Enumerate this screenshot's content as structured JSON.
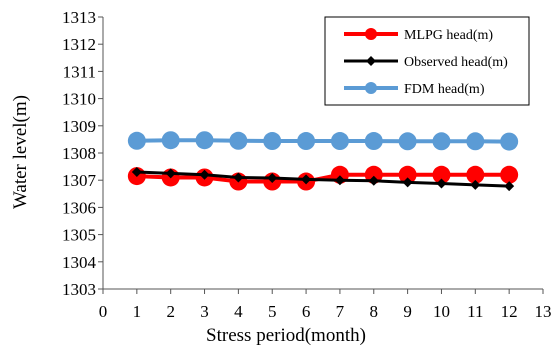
{
  "chart_data": {
    "type": "line",
    "xlabel": "Stress period(month)",
    "ylabel": "Water level(m)",
    "xlim": [
      0,
      13
    ],
    "ylim": [
      1303,
      1313
    ],
    "xticks": [
      "0",
      "1",
      "2",
      "3",
      "4",
      "5",
      "6",
      "7",
      "8",
      "9",
      "10",
      "11",
      "12",
      "13"
    ],
    "yticks": [
      "1303",
      "1304",
      "1305",
      "1306",
      "1307",
      "1308",
      "1309",
      "1310",
      "1311",
      "1312",
      "1313"
    ],
    "grid": false,
    "legend_position": "top-right",
    "x": [
      1,
      2,
      3,
      4,
      5,
      6,
      7,
      8,
      9,
      10,
      11,
      12
    ],
    "series": [
      {
        "name": "MLPG head(m)",
        "color": "#ff0000",
        "marker": "circle",
        "values": [
          1307.15,
          1307.1,
          1307.1,
          1306.95,
          1306.95,
          1306.95,
          1307.2,
          1307.2,
          1307.2,
          1307.2,
          1307.2,
          1307.2
        ]
      },
      {
        "name": "Observed head(m)",
        "color": "#000000",
        "marker": "diamond",
        "values": [
          1307.3,
          1307.25,
          1307.2,
          1307.1,
          1307.08,
          1307.03,
          1307.0,
          1306.98,
          1306.92,
          1306.88,
          1306.83,
          1306.78
        ]
      },
      {
        "name": "FDM head(m)",
        "color": "#5b9bd5",
        "marker": "circle",
        "values": [
          1308.45,
          1308.47,
          1308.47,
          1308.45,
          1308.44,
          1308.44,
          1308.44,
          1308.44,
          1308.43,
          1308.43,
          1308.43,
          1308.42
        ]
      }
    ]
  }
}
